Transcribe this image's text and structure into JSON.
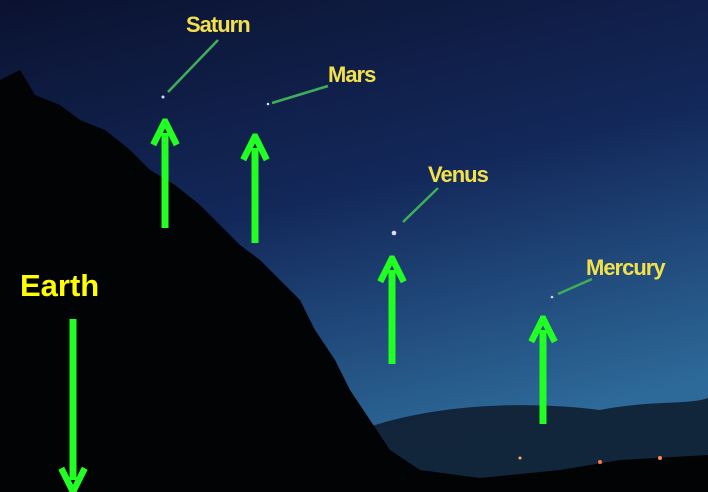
{
  "planets": [
    {
      "label": "Saturn"
    },
    {
      "label": "Mars"
    },
    {
      "label": "Venus"
    },
    {
      "label": "Mercury"
    }
  ],
  "earth": {
    "label": "Earth"
  }
}
